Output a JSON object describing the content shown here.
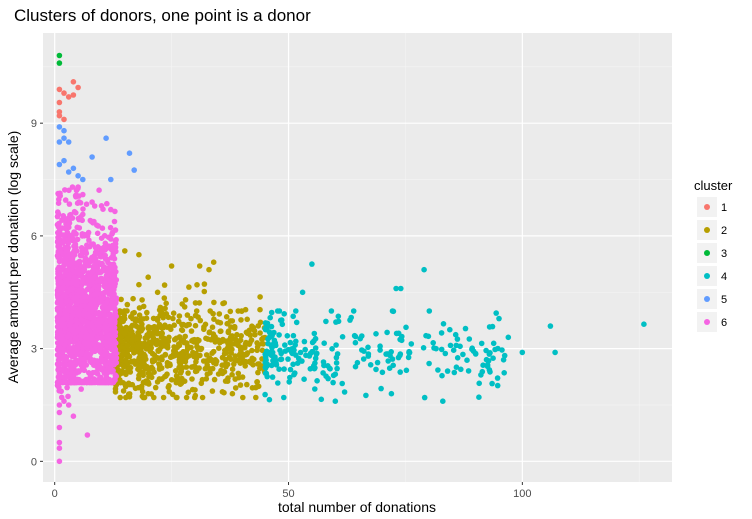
{
  "chart_data": {
    "type": "scatter",
    "title": "Clusters of donors, one point is a donor",
    "xlabel": "total number of donations",
    "ylabel": "Average amount per donation (log scale)",
    "xlim": [
      -2.5,
      132
    ],
    "ylim": [
      -0.55,
      11.4
    ],
    "x_ticks": [
      0,
      50,
      100
    ],
    "y_ticks": [
      0,
      3,
      6,
      9
    ],
    "grid": true,
    "legend": {
      "title": "cluster",
      "position": "right"
    },
    "series": [
      {
        "name": "1",
        "color": "#F8766D",
        "points": [
          [
            1,
            9.3
          ],
          [
            1,
            9.2
          ],
          [
            1,
            9.9
          ],
          [
            2,
            9.8
          ],
          [
            3,
            9.7
          ],
          [
            4,
            10.1
          ],
          [
            5,
            9.95
          ],
          [
            4,
            9.75
          ],
          [
            1,
            9.55
          ],
          [
            2,
            9.1
          ]
        ]
      },
      {
        "name": "2",
        "color": "#B79F00",
        "summary": "dense band from about 13 to 45 donations, average log amount roughly 1.6 to 5.6",
        "points": [
          [
            15,
            5.6
          ],
          [
            18,
            5.5
          ],
          [
            20,
            4.9
          ],
          [
            25,
            5.2
          ],
          [
            31,
            5.2
          ],
          [
            33,
            5.1
          ],
          [
            34,
            5.3
          ],
          [
            18,
            4.7
          ],
          [
            22,
            4.5
          ],
          [
            28,
            4.3
          ],
          [
            36,
            4.2
          ],
          [
            40,
            4.0
          ],
          [
            44,
            3.7
          ],
          [
            14,
            1.7
          ],
          [
            20,
            1.8
          ],
          [
            26,
            1.7
          ],
          [
            30,
            1.9
          ],
          [
            38,
            1.8
          ],
          [
            43,
            1.7
          ]
        ]
      },
      {
        "name": "3",
        "color": "#00BA38",
        "points": [
          [
            1,
            10.8
          ],
          [
            1,
            10.6
          ]
        ]
      },
      {
        "name": "4",
        "color": "#00BFC4",
        "summary": "sparse band from about 45 to 127 donations, average log amount roughly 1.6 to 5.3",
        "points": [
          [
            55,
            5.25
          ],
          [
            79,
            5.1
          ],
          [
            53,
            4.5
          ],
          [
            73,
            4.6
          ],
          [
            74,
            4.6
          ],
          [
            126,
            3.65
          ],
          [
            106,
            3.6
          ],
          [
            100,
            2.9
          ],
          [
            107,
            2.9
          ],
          [
            97,
            3.3
          ],
          [
            95,
            3.8
          ],
          [
            57,
            1.65
          ],
          [
            49,
            1.7
          ],
          [
            60,
            1.6
          ],
          [
            83,
            1.6
          ],
          [
            72,
            1.8
          ]
        ]
      },
      {
        "name": "5",
        "color": "#619CFF",
        "points": [
          [
            1,
            8.5
          ],
          [
            2,
            8.6
          ],
          [
            3,
            8.5
          ],
          [
            2,
            8.0
          ],
          [
            4,
            7.8
          ],
          [
            5,
            7.6
          ],
          [
            6,
            7.5
          ],
          [
            8,
            8.1
          ],
          [
            11,
            8.6
          ],
          [
            16,
            8.2
          ],
          [
            17,
            7.75
          ],
          [
            12,
            7.5
          ],
          [
            1,
            8.9
          ],
          [
            2,
            8.8
          ],
          [
            1,
            7.9
          ],
          [
            3,
            7.7
          ]
        ]
      },
      {
        "name": "6",
        "color": "#F564E3",
        "summary": "very dense band from 0 to about 13 donations, average log amount roughly 0 to 7.3",
        "points": [
          [
            1,
            0
          ],
          [
            1,
            0.35
          ],
          [
            1,
            0.5
          ],
          [
            1,
            0.9
          ],
          [
            7,
            0.7
          ],
          [
            1,
            1.3
          ],
          [
            1,
            1.5
          ],
          [
            3,
            1.5
          ],
          [
            4,
            1.2
          ],
          [
            2,
            1.6
          ],
          [
            6,
            7.1
          ],
          [
            8,
            6.9
          ],
          [
            10,
            6.8
          ],
          [
            12,
            6.7
          ],
          [
            5,
            7.3
          ]
        ]
      }
    ]
  }
}
